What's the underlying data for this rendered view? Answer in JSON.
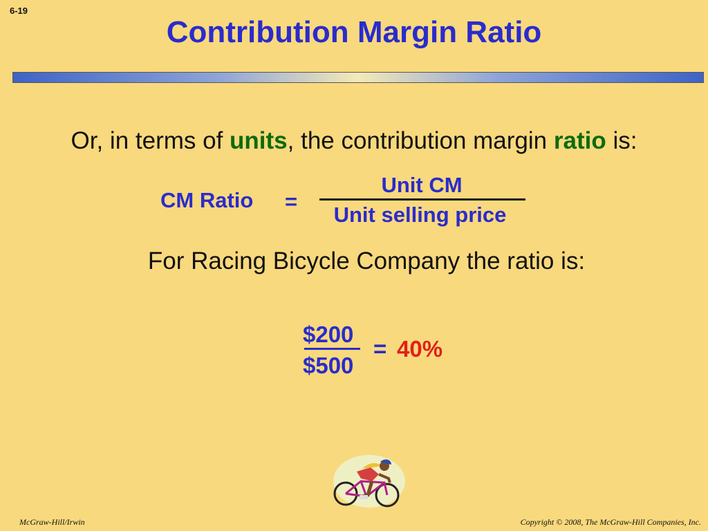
{
  "slide_number": "6-19",
  "title": "Contribution Margin Ratio",
  "intro": {
    "part1": "Or, in terms of ",
    "highlight1": "units",
    "part2": ", the contribution margin ",
    "highlight2": "ratio",
    "part3": " is:"
  },
  "formula": {
    "label": "CM Ratio",
    "equals": "=",
    "numerator": "Unit CM",
    "denominator": "Unit selling price"
  },
  "company_line": "For Racing Bicycle Company the ratio is:",
  "example": {
    "numerator": "$200",
    "denominator": "$500",
    "equals": "=",
    "result": "40%"
  },
  "footer": {
    "left": "McGraw-Hill/Irwin",
    "right": "Copyright © 2008, The McGraw-Hill Companies, Inc."
  },
  "colors": {
    "background": "#f9d97d",
    "title": "#2a2ccc",
    "highlight": "#0c6b0c",
    "result": "#e0201a"
  },
  "illustration": "cyclist-clipart"
}
